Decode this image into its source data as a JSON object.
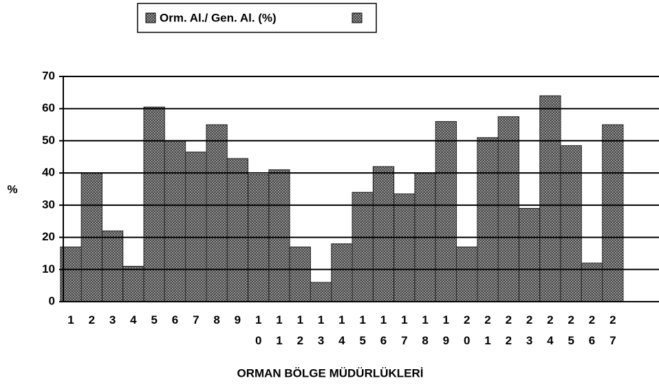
{
  "chart_data": {
    "type": "bar",
    "categories": [
      "1",
      "2",
      "3",
      "4",
      "5",
      "6",
      "7",
      "8",
      "9",
      "10",
      "11",
      "12",
      "13",
      "14",
      "15",
      "16",
      "17",
      "18",
      "19",
      "20",
      "21",
      "22",
      "23",
      "24",
      "25",
      "26",
      "27"
    ],
    "series": [
      {
        "name": "Orm. Al./ Gen. Al. (%)",
        "color": "#4a4a4a",
        "values": [
          17,
          40,
          22,
          11,
          60.5,
          50,
          46.5,
          55,
          44.5,
          39.5,
          41,
          17,
          6,
          18,
          34,
          42,
          33.5,
          40,
          56,
          17,
          51,
          57.5,
          29,
          64,
          48.5,
          12,
          55
        ]
      }
    ],
    "ylim": [
      0,
      70
    ],
    "yticks": [
      0,
      10,
      20,
      30,
      40,
      50,
      60,
      70
    ],
    "grid": true,
    "ylabel": "%",
    "xlabel": "ORMAN BÖLGE MÜDÜRLÜKLERİ"
  }
}
